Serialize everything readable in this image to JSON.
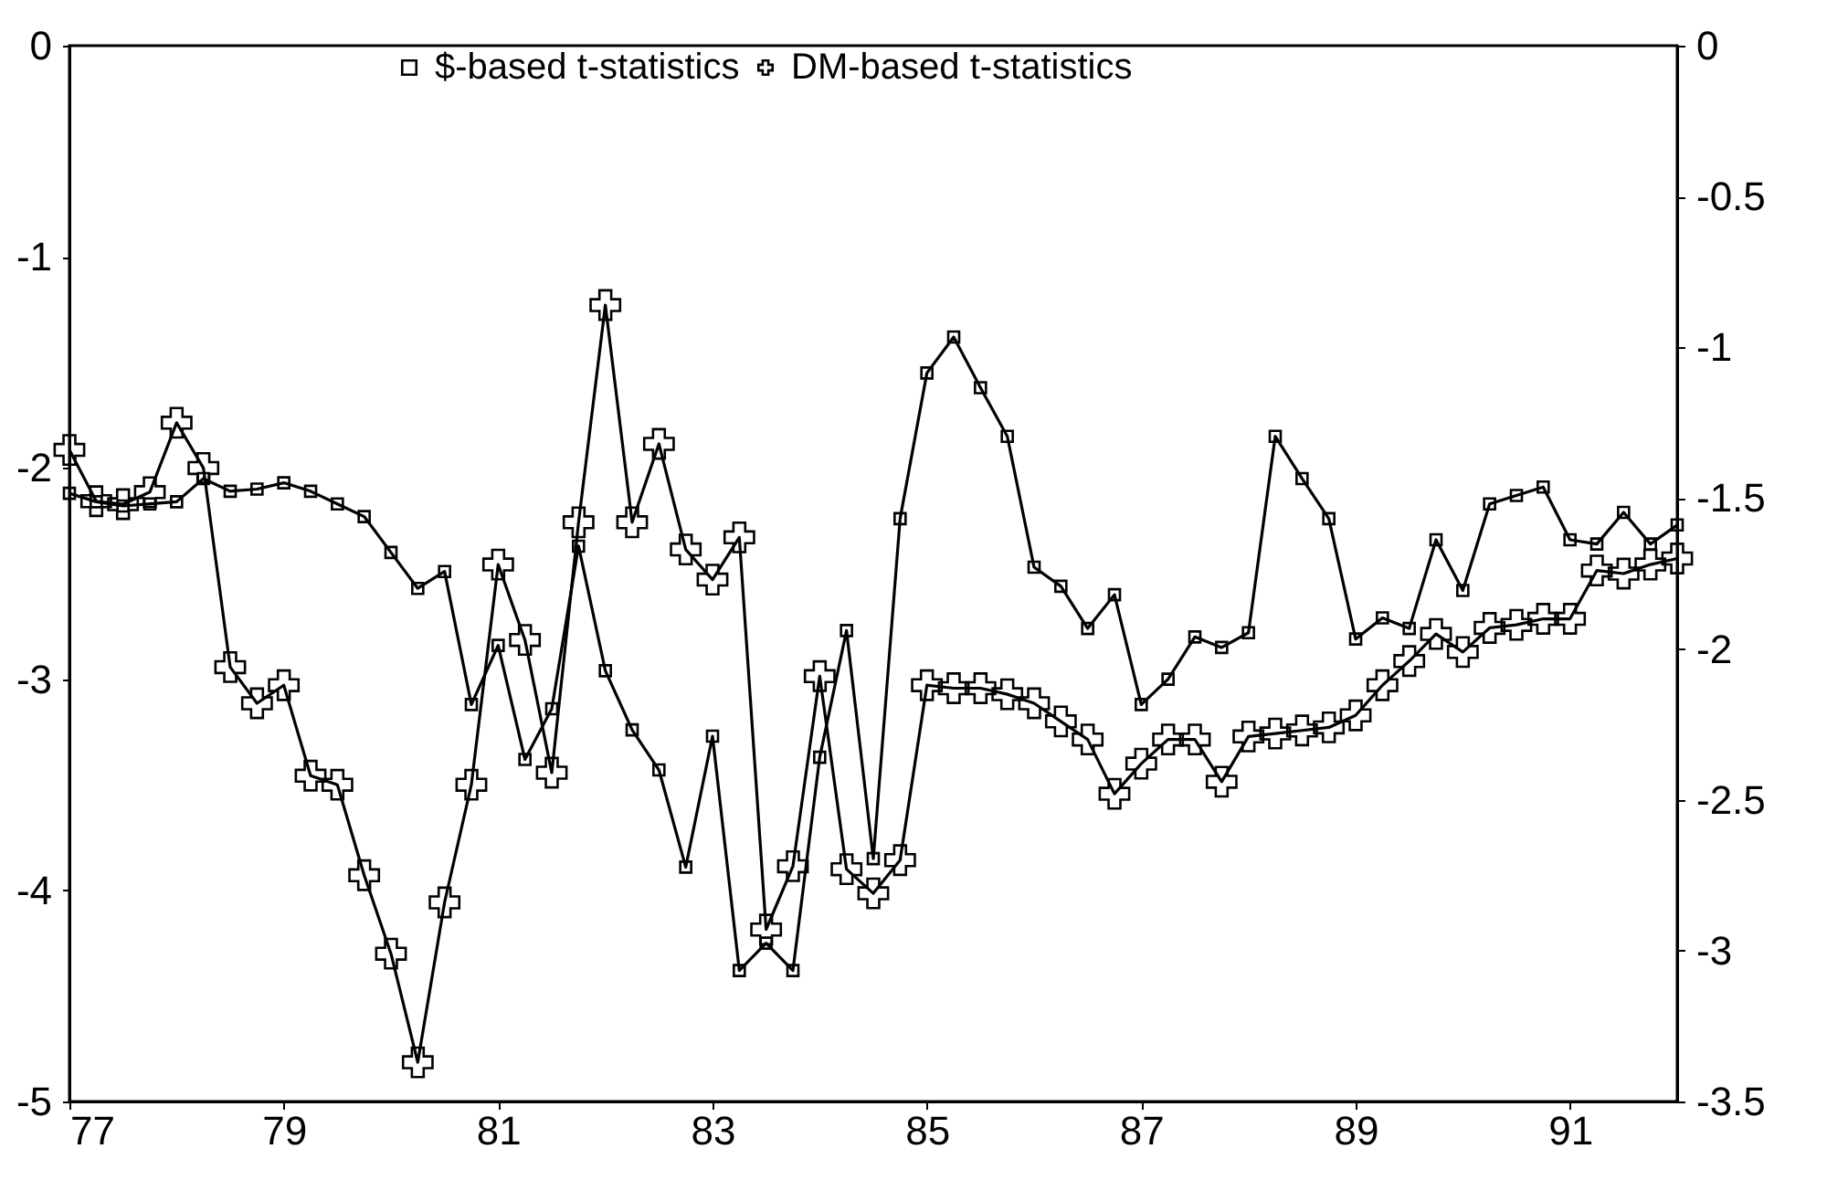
{
  "chart_data": {
    "type": "line",
    "xlim": [
      77,
      92
    ],
    "xticks": [
      77,
      79,
      81,
      83,
      85,
      87,
      89,
      91
    ],
    "ylim": [
      -5,
      0
    ],
    "yticks": [
      0,
      -1,
      -2,
      -3,
      -4,
      -5
    ],
    "y2lim": [
      -3.5,
      0
    ],
    "y2ticks": [
      0,
      -0.5,
      -1,
      -1.5,
      -2,
      -2.5,
      -3,
      -3.5
    ],
    "grid": false,
    "legend": "top",
    "x": [
      77,
      77.25,
      77.5,
      77.75,
      78,
      78.25,
      78.5,
      78.75,
      79,
      79.25,
      79.5,
      79.75,
      80,
      80.25,
      80.5,
      80.75,
      81,
      81.25,
      81.5,
      81.75,
      82,
      82.25,
      82.5,
      82.75,
      83,
      83.25,
      83.5,
      83.75,
      84,
      84.25,
      84.5,
      84.75,
      85,
      85.25,
      85.5,
      85.75,
      86,
      86.25,
      86.5,
      86.75,
      87,
      87.25,
      87.5,
      87.75,
      88,
      88.25,
      88.5,
      88.75,
      89,
      89.25,
      89.5,
      89.75,
      90,
      90.25,
      90.5,
      90.75,
      91,
      91.25,
      91.5,
      91.75,
      92
    ],
    "series": [
      {
        "name": "$-based t-statistics",
        "color": "#000000",
        "marker": "square",
        "values": [
          -2.12,
          -2.16,
          -2.18,
          -2.17,
          -2.16,
          -2.05,
          -2.11,
          -2.1,
          -2.07,
          -2.11,
          -2.17,
          -2.23,
          -2.4,
          -2.57,
          -2.49,
          -3.12,
          -2.84,
          -3.38,
          -3.14,
          -2.37,
          -2.96,
          -3.24,
          -3.43,
          -3.89,
          -3.27,
          -4.38,
          -4.25,
          -4.38,
          -3.37,
          -2.77,
          -3.85,
          -2.24,
          -1.55,
          -1.38,
          -1.62,
          -1.85,
          -2.47,
          -2.56,
          -2.76,
          -2.6,
          -3.12,
          -3,
          -2.8,
          -2.85,
          -2.78,
          -1.85,
          -2.05,
          -2.24,
          -2.81,
          -2.71,
          -2.76,
          -2.34,
          -2.58,
          -2.17,
          -2.13,
          -2.09,
          -2.34,
          -2.36,
          -2.21,
          -2.36,
          -2.27
        ]
      },
      {
        "name": "DM-based t-statistics",
        "color": "#000000",
        "marker": "cross",
        "axis": "y2",
        "values": [
          -1.34,
          -1.51,
          -1.52,
          -1.48,
          -1.25,
          -1.4,
          -2.06,
          -2.18,
          -2.12,
          -2.42,
          -2.45,
          -2.75,
          -3.01,
          -3.37,
          -2.84,
          -2.45,
          -1.72,
          -1.97,
          -2.41,
          -1.58,
          -0.86,
          -1.58,
          -1.32,
          -1.67,
          -1.77,
          -1.63,
          -2.93,
          -2.72,
          -2.09,
          -2.73,
          -2.81,
          -2.7,
          -2.12,
          -2.13,
          -2.13,
          -2.15,
          -2.18,
          -2.24,
          -2.3,
          -2.48,
          -2.38,
          -2.3,
          -2.3,
          -2.44,
          -2.29,
          -2.28,
          -2.27,
          -2.26,
          -2.22,
          -2.12,
          -2.04,
          -1.95,
          -2.01,
          -1.93,
          -1.92,
          -1.9,
          -1.9,
          -1.74,
          -1.75,
          -1.72,
          -1.7
        ]
      }
    ]
  }
}
